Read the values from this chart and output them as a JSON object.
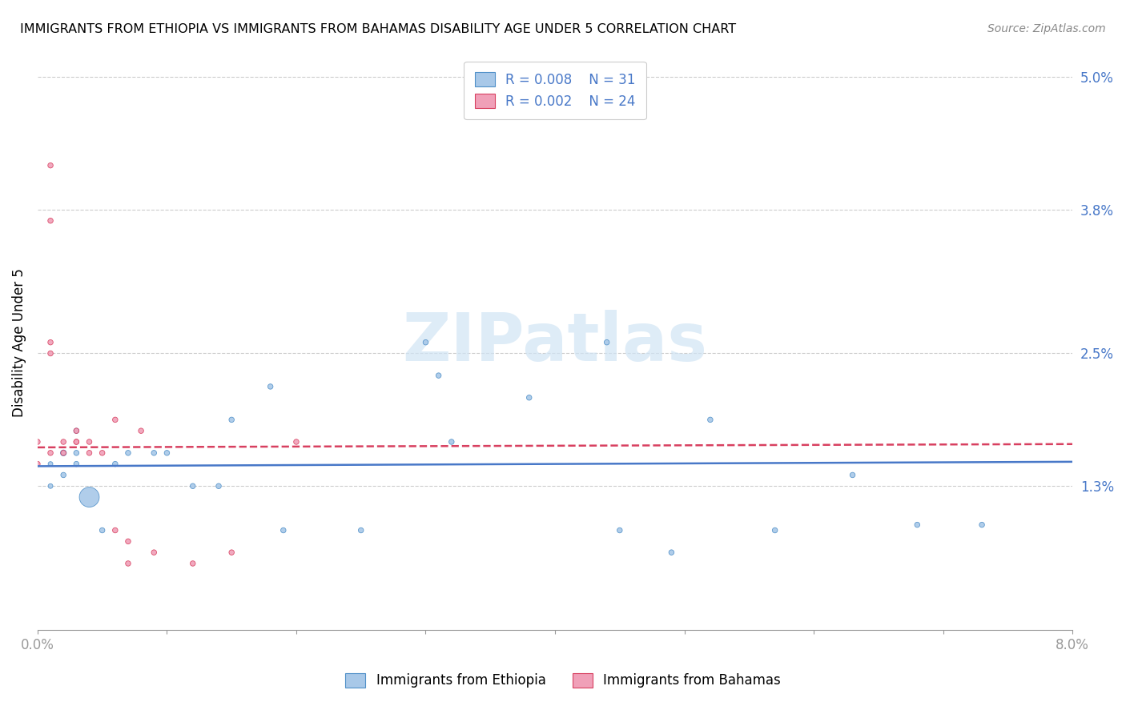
{
  "title": "IMMIGRANTS FROM ETHIOPIA VS IMMIGRANTS FROM BAHAMAS DISABILITY AGE UNDER 5 CORRELATION CHART",
  "source": "Source: ZipAtlas.com",
  "ylabel": "Disability Age Under 5",
  "xlim": [
    0.0,
    0.08
  ],
  "ylim": [
    0.0,
    0.052
  ],
  "yticks": [
    0.013,
    0.025,
    0.038,
    0.05
  ],
  "ytick_labels": [
    "1.3%",
    "2.5%",
    "3.8%",
    "5.0%"
  ],
  "xtick_labels": [
    "0.0%",
    "",
    "",
    "",
    "",
    "",
    "",
    "",
    "8.0%"
  ],
  "ethiopia_color": "#a8c8e8",
  "bahamas_color": "#f0a0b8",
  "ethiopia_edge_color": "#5090c8",
  "bahamas_edge_color": "#d84060",
  "ethiopia_line_color": "#4878c8",
  "bahamas_line_color": "#d84060",
  "watermark_color": "#d0e4f4",
  "ethiopia_x": [
    0.001,
    0.001,
    0.002,
    0.002,
    0.003,
    0.003,
    0.003,
    0.004,
    0.005,
    0.006,
    0.007,
    0.009,
    0.01,
    0.012,
    0.014,
    0.015,
    0.018,
    0.019,
    0.025,
    0.03,
    0.031,
    0.032,
    0.038,
    0.044,
    0.045,
    0.049,
    0.052,
    0.057,
    0.063,
    0.068,
    0.073
  ],
  "ethiopia_y": [
    0.015,
    0.013,
    0.016,
    0.014,
    0.018,
    0.016,
    0.015,
    0.012,
    0.009,
    0.015,
    0.016,
    0.016,
    0.016,
    0.013,
    0.013,
    0.019,
    0.022,
    0.009,
    0.009,
    0.026,
    0.023,
    0.017,
    0.021,
    0.026,
    0.009,
    0.007,
    0.019,
    0.009,
    0.014,
    0.0095,
    0.0095
  ],
  "ethiopia_size": [
    18,
    18,
    28,
    22,
    22,
    22,
    22,
    320,
    22,
    22,
    22,
    22,
    22,
    22,
    22,
    22,
    22,
    22,
    22,
    22,
    22,
    22,
    22,
    22,
    22,
    22,
    22,
    22,
    22,
    22,
    22
  ],
  "bahamas_x": [
    0.0,
    0.0,
    0.001,
    0.001,
    0.001,
    0.001,
    0.001,
    0.002,
    0.002,
    0.003,
    0.003,
    0.003,
    0.004,
    0.004,
    0.005,
    0.006,
    0.006,
    0.007,
    0.007,
    0.008,
    0.009,
    0.012,
    0.015,
    0.02
  ],
  "bahamas_y": [
    0.017,
    0.015,
    0.042,
    0.037,
    0.026,
    0.025,
    0.016,
    0.017,
    0.016,
    0.018,
    0.017,
    0.017,
    0.017,
    0.016,
    0.016,
    0.019,
    0.009,
    0.008,
    0.006,
    0.018,
    0.007,
    0.006,
    0.007,
    0.017
  ],
  "bahamas_size": [
    22,
    22,
    22,
    22,
    22,
    22,
    22,
    22,
    22,
    22,
    22,
    22,
    22,
    22,
    22,
    22,
    22,
    22,
    22,
    22,
    22,
    22,
    22,
    22
  ],
  "eth_trend_y0": 0.0148,
  "eth_trend_y1": 0.0152,
  "bah_trend_y0": 0.0165,
  "bah_trend_y1": 0.0168
}
